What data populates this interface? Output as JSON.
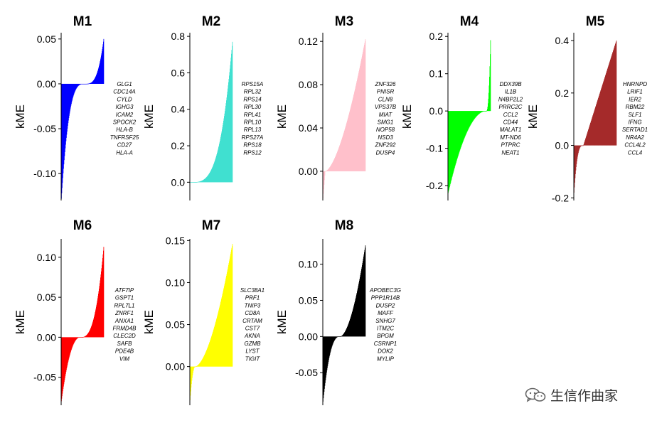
{
  "chart_data": [
    {
      "type": "bar",
      "title": "M1",
      "ylabel": "kME",
      "ylim": [
        -0.13,
        0.057
      ],
      "yticks": [
        0.05,
        0.0,
        -0.05,
        -0.1
      ],
      "ytick_labels": [
        "0.05",
        "0.00",
        "-0.05",
        "-0.10"
      ],
      "series_color": "#0000FF",
      "curve": {
        "min": -0.128,
        "max": 0.05,
        "zero_at": 0.56,
        "skew_low": 3.2,
        "skew_high": 3.2
      },
      "genes": [
        "GLG1",
        "CDC14A",
        "CYLD",
        "IGHG3",
        "ICAM2",
        "SPOCK2",
        "HLA-B",
        "TNFRSF25",
        "CD27",
        "HLA-A"
      ]
    },
    {
      "type": "bar",
      "title": "M2",
      "ylabel": "kME",
      "ylim": [
        -0.1,
        0.82
      ],
      "yticks": [
        0.8,
        0.6,
        0.4,
        0.2,
        0.0
      ],
      "ytick_labels": [
        "0.8",
        "0.6",
        "0.4",
        "0.2",
        "0.0"
      ],
      "series_color": "#40E0D0",
      "curve": {
        "min": 0.01,
        "max": 0.77,
        "zero_at": 0.0,
        "skew_low": 1.0,
        "skew_high": 3.5
      },
      "genes": [
        "RPS15A",
        "RPL32",
        "RPS14",
        "RPL30",
        "RPL41",
        "RPL10",
        "RPL13",
        "RPS27A",
        "RPS18",
        "RPS12"
      ]
    },
    {
      "type": "bar",
      "title": "M3",
      "ylabel": "kME",
      "ylim": [
        -0.027,
        0.128
      ],
      "yticks": [
        0.12,
        0.08,
        0.04,
        0.0
      ],
      "ytick_labels": [
        "0.12",
        "0.08",
        "0.04",
        "0.00"
      ],
      "series_color": "#FFC0CB",
      "curve": {
        "min": -0.025,
        "max": 0.122,
        "zero_at": 0.05,
        "skew_low": 1.0,
        "skew_high": 1.6
      },
      "genes": [
        "ZNF326",
        "PNISR",
        "CLN8",
        "VPS37B",
        "MIAT",
        "SMG1",
        "NOP58",
        "NSD3",
        "ZNF292",
        "DUSP4"
      ]
    },
    {
      "type": "bar",
      "title": "M4",
      "ylabel": "kME",
      "ylim": [
        -0.24,
        0.21
      ],
      "yticks": [
        0.2,
        0.1,
        0.0,
        -0.1,
        -0.2
      ],
      "ytick_labels": [
        "0.2",
        "0.1",
        "0.0",
        "-0.1",
        "-0.2"
      ],
      "series_color": "#00FF00",
      "curve": {
        "min": -0.22,
        "max": 0.19,
        "zero_at": 0.9,
        "skew_low": 2.0,
        "skew_high": 2.5
      },
      "genes": [
        "DDX39B",
        "IL1B",
        "N4BP2L2",
        "PRRC2C",
        "CCL2",
        "CD44",
        "MALAT1",
        "MT-ND6",
        "PTPRC",
        "NEAT1"
      ]
    },
    {
      "type": "bar",
      "title": "M5",
      "ylabel": "kME",
      "ylim": [
        -0.21,
        0.43
      ],
      "yticks": [
        0.4,
        0.2,
        0.0,
        -0.2
      ],
      "ytick_labels": [
        "0.4",
        "0.2",
        "0.0",
        "-0.2"
      ],
      "series_color": "#A52A2A",
      "curve": {
        "min": -0.18,
        "max": 0.4,
        "zero_at": 0.22,
        "skew_low": 3.0,
        "skew_high": 1.0
      },
      "genes": [
        "HNRNPD",
        "LRIF1",
        "IER2",
        "RBM22",
        "SLF1",
        "IFNG",
        "SERTAD1",
        "NR4A2",
        "CCL4L2",
        "CCL4"
      ]
    },
    {
      "type": "bar",
      "title": "M6",
      "ylabel": "kME",
      "ylim": [
        -0.085,
        0.123
      ],
      "yticks": [
        0.1,
        0.05,
        0.0,
        -0.05
      ],
      "ytick_labels": [
        "0.10",
        "0.05",
        "0.00",
        "-0.05"
      ],
      "series_color": "#FF0000",
      "curve": {
        "min": -0.08,
        "max": 0.113,
        "zero_at": 0.45,
        "skew_low": 2.2,
        "skew_high": 2.8
      },
      "genes": [
        "ATF7IP",
        "GSPT1",
        "RPL7L1",
        "ZNRF1",
        "ANXA1",
        "FRMD4B",
        "CLEC2D",
        "SAFB",
        "PDE4B",
        "VIM"
      ]
    },
    {
      "type": "bar",
      "title": "M7",
      "ylabel": "kME",
      "ylim": [
        -0.046,
        0.152
      ],
      "yticks": [
        0.15,
        0.1,
        0.05,
        0.0
      ],
      "ytick_labels": [
        "0.15",
        "0.10",
        "0.05",
        "0.00"
      ],
      "series_color": "#FFFF00",
      "curve": {
        "min": -0.04,
        "max": 0.146,
        "zero_at": 0.12,
        "skew_low": 2.0,
        "skew_high": 1.7
      },
      "genes": [
        "SLC38A1",
        "PRF1",
        "TNIP3",
        "CD8A",
        "CRTAM",
        "CST7",
        "AKNA",
        "GZMB",
        "LYST",
        "TIGIT"
      ]
    },
    {
      "type": "bar",
      "title": "M8",
      "ylabel": "kME",
      "ylim": [
        -0.095,
        0.135
      ],
      "yticks": [
        0.1,
        0.05,
        0.0,
        -0.05
      ],
      "ytick_labels": [
        "0.10",
        "0.05",
        "0.00",
        "-0.05"
      ],
      "series_color": "#000000",
      "curve": {
        "min": -0.09,
        "max": 0.126,
        "zero_at": 0.4,
        "skew_low": 2.5,
        "skew_high": 1.8
      },
      "genes": [
        "APOBEC3G",
        "PPP1R14B",
        "DUSP2",
        "MAFF",
        "SNHG7",
        "ITM2C",
        "BPGM",
        "CSRNP1",
        "DOK2",
        "MYLIP"
      ]
    }
  ],
  "watermark": {
    "text": "生信作曲家",
    "icon": "wechat-icon"
  }
}
